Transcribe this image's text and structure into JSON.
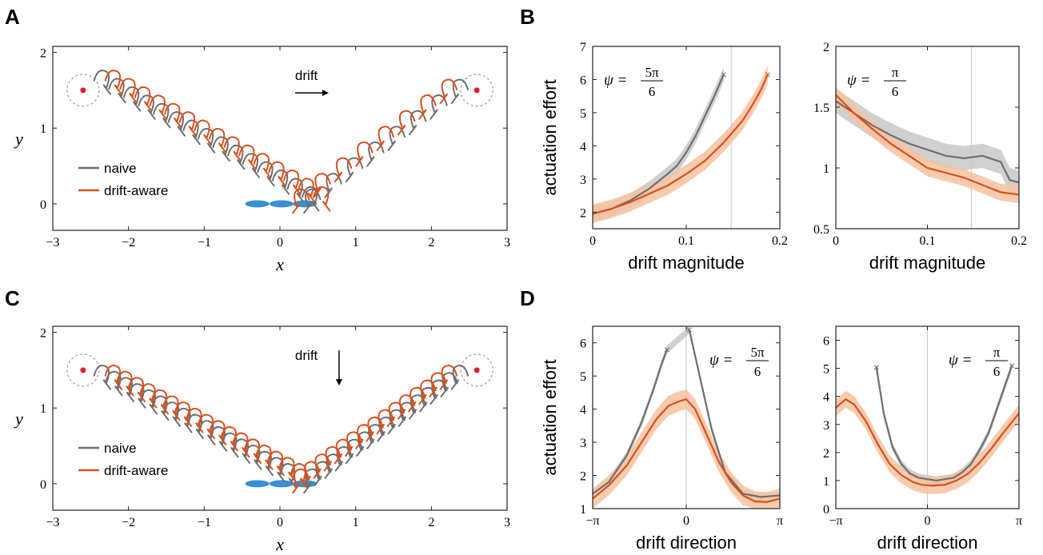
{
  "panels": {
    "A": "A",
    "B": "B",
    "C": "C",
    "D": "D"
  },
  "colors": {
    "naive": "#6f6f6f",
    "aware": "#d9501e",
    "naive_band": "#c8c8c8",
    "aware_band": "#f6c29f",
    "target": "#e8192c",
    "swimmer": "#3a8fd0"
  },
  "chart_data": [
    {
      "id": "A",
      "type": "line",
      "xlabel": "x",
      "ylabel": "y",
      "xlim": [
        -3,
        3
      ],
      "ylim": [
        -0.35,
        2.08
      ],
      "xticks": [
        -3,
        -2,
        -1,
        0,
        1,
        2,
        3
      ],
      "xtick_labels": [
        "−3",
        "−2",
        "−1",
        "0",
        "1",
        "2",
        "3"
      ],
      "yticks": [
        0,
        1,
        2
      ],
      "ytick_labels": [
        "0",
        "1",
        "2"
      ],
      "legend": [
        "naive",
        "drift-aware"
      ],
      "legend_position": "lower-left",
      "annotation": "drift",
      "drift_arrow": "right",
      "targets": [
        [
          -2.6,
          1.5
        ],
        [
          2.6,
          1.5
        ]
      ],
      "swimmer_x": [
        -0.3,
        0.02,
        0.33
      ],
      "left_branch": {
        "x0": -2.35,
        "y0": 1.62,
        "x1": 0.4,
        "y1": 0.08,
        "n": 15
      },
      "right_branch": {
        "x0": 0.45,
        "y0": 0.05,
        "x1": 2.4,
        "y1": 1.5,
        "n": 8
      },
      "series": [
        {
          "name": "naive"
        },
        {
          "name": "drift-aware"
        }
      ]
    },
    {
      "id": "C",
      "type": "line",
      "xlabel": "x",
      "ylabel": "y",
      "xlim": [
        -3,
        3
      ],
      "ylim": [
        -0.35,
        2.08
      ],
      "xticks": [
        -3,
        -2,
        -1,
        0,
        1,
        2,
        3
      ],
      "xtick_labels": [
        "−3",
        "−2",
        "−1",
        "0",
        "1",
        "2",
        "3"
      ],
      "yticks": [
        0,
        1,
        2
      ],
      "ytick_labels": [
        "0",
        "1",
        "2"
      ],
      "legend": [
        "naive",
        "drift-aware"
      ],
      "legend_position": "lower-left",
      "annotation": "drift",
      "drift_arrow": "down",
      "targets": [
        [
          -2.6,
          1.5
        ],
        [
          2.6,
          1.5
        ]
      ],
      "swimmer_x": [
        -0.3,
        0.02,
        0.33
      ],
      "left_branch": {
        "x0": -2.35,
        "y0": 1.42,
        "x1": 0.1,
        "y1": 0.12,
        "n": 17
      },
      "right_branch": {
        "x0": 0.45,
        "y0": 0.05,
        "x1": 2.4,
        "y1": 1.42,
        "n": 15
      },
      "series": [
        {
          "name": "naive"
        },
        {
          "name": "drift-aware"
        }
      ]
    },
    {
      "id": "B1",
      "type": "line",
      "xlabel": "drift magnitude",
      "ylabel": "actuation effort",
      "xlim": [
        0,
        0.2
      ],
      "ylim": [
        1.5,
        7
      ],
      "xticks": [
        0,
        0.1,
        0.2
      ],
      "xtick_labels": [
        "0",
        "0.1",
        "0.2"
      ],
      "yticks": [
        2,
        3,
        4,
        5,
        6,
        7
      ],
      "ytick_labels": [
        "2",
        "3",
        "4",
        "5",
        "6",
        "7"
      ],
      "psi_label": "ψ =",
      "psi_num": "5π",
      "psi_den": "6",
      "vline": 0.148,
      "series": [
        {
          "name": "naive",
          "x": [
            0,
            0.02,
            0.04,
            0.06,
            0.08,
            0.09,
            0.1,
            0.11,
            0.12,
            0.13,
            0.14
          ],
          "y": [
            1.95,
            2.1,
            2.35,
            2.7,
            3.15,
            3.4,
            3.8,
            4.3,
            4.9,
            5.5,
            6.15
          ],
          "band": 0.22,
          "end_marker": true
        },
        {
          "name": "drift-aware",
          "x": [
            0,
            0.02,
            0.04,
            0.06,
            0.08,
            0.1,
            0.12,
            0.14,
            0.16,
            0.17,
            0.18,
            0.187
          ],
          "y": [
            1.95,
            2.1,
            2.3,
            2.55,
            2.8,
            3.15,
            3.55,
            4.1,
            4.75,
            5.2,
            5.7,
            6.15
          ],
          "band": 0.28,
          "end_marker": true
        }
      ]
    },
    {
      "id": "B2",
      "type": "line",
      "xlabel": "drift magnitude",
      "ylabel": "",
      "xlim": [
        0,
        0.2
      ],
      "ylim": [
        0.5,
        2
      ],
      "xticks": [
        0,
        0.1,
        0.2
      ],
      "xtick_labels": [
        "0",
        "0.1",
        "0.2"
      ],
      "yticks": [
        0.5,
        1,
        1.5,
        2
      ],
      "ytick_labels": [
        "0.5",
        "1",
        "1.5",
        "2"
      ],
      "psi_label": "ψ =",
      "psi_num": "π",
      "psi_den": "6",
      "vline": 0.148,
      "series": [
        {
          "name": "naive",
          "x": [
            0,
            0.02,
            0.04,
            0.06,
            0.08,
            0.1,
            0.12,
            0.14,
            0.16,
            0.18,
            0.19,
            0.2
          ],
          "y": [
            1.55,
            1.45,
            1.35,
            1.27,
            1.2,
            1.15,
            1.1,
            1.08,
            1.1,
            1.05,
            0.9,
            0.88
          ],
          "band": 0.1,
          "end_marker": false
        },
        {
          "name": "drift-aware",
          "x": [
            0,
            0.02,
            0.04,
            0.06,
            0.08,
            0.1,
            0.12,
            0.14,
            0.16,
            0.18,
            0.2
          ],
          "y": [
            1.6,
            1.45,
            1.32,
            1.2,
            1.1,
            1.0,
            0.96,
            0.92,
            0.86,
            0.8,
            0.78
          ],
          "band": 0.07,
          "end_marker": false
        }
      ]
    },
    {
      "id": "D1",
      "type": "line",
      "xlabel": "drift direction",
      "ylabel": "actuation effort",
      "xlim": [
        -3.1416,
        3.1416
      ],
      "ylim": [
        1,
        6.5
      ],
      "xticks": [
        -3.1416,
        0,
        3.1416
      ],
      "xtick_labels": [
        "−π",
        "0",
        "π"
      ],
      "yticks": [
        1,
        2,
        3,
        4,
        5,
        6
      ],
      "ytick_labels": [
        "1",
        "2",
        "3",
        "4",
        "5",
        "6"
      ],
      "psi_label": "ψ =",
      "psi_num": "5π",
      "psi_den": "6",
      "vline": 0,
      "series": [
        {
          "name": "naive",
          "x": [
            -3.1416,
            -2.6,
            -2.0,
            -1.5,
            -1.1,
            -0.85,
            -0.65,
            0.1,
            0.3,
            0.55,
            0.85,
            1.3,
            1.9,
            2.5,
            3.1416
          ],
          "y": [
            1.45,
            1.8,
            2.6,
            3.6,
            4.6,
            5.3,
            5.8,
            6.4,
            5.6,
            4.6,
            3.4,
            2.1,
            1.45,
            1.35,
            1.4
          ],
          "band": 0.12,
          "end_marker": true,
          "gap": [
            -0.65,
            0.1
          ]
        },
        {
          "name": "drift-aware",
          "x": [
            -3.1416,
            -2.6,
            -2.0,
            -1.5,
            -1.0,
            -0.6,
            -0.2,
            0.0,
            0.3,
            0.7,
            1.1,
            1.5,
            1.9,
            2.3,
            2.7,
            3.1416
          ],
          "y": [
            1.3,
            1.7,
            2.3,
            3.0,
            3.7,
            4.1,
            4.25,
            4.3,
            4.0,
            3.2,
            2.4,
            1.8,
            1.4,
            1.22,
            1.2,
            1.3
          ],
          "band": 0.3,
          "end_marker": false
        }
      ]
    },
    {
      "id": "D2",
      "type": "line",
      "xlabel": "drift direction",
      "ylabel": "",
      "xlim": [
        -3.1416,
        3.1416
      ],
      "ylim": [
        0,
        6.5
      ],
      "xticks": [
        -3.1416,
        0,
        3.1416
      ],
      "xtick_labels": [
        "−π",
        "0",
        "π"
      ],
      "yticks": [
        0,
        1,
        2,
        3,
        4,
        5,
        6
      ],
      "ytick_labels": [
        "0",
        "1",
        "2",
        "3",
        "4",
        "5",
        "6"
      ],
      "psi_label": "ψ =",
      "psi_num": "π",
      "psi_den": "6",
      "vline": 0,
      "series": [
        {
          "name": "naive",
          "x": [
            -1.75,
            -1.5,
            -1.2,
            -0.9,
            -0.6,
            -0.3,
            0,
            0.3,
            0.6,
            0.9,
            1.2,
            1.5,
            1.8,
            2.1,
            2.4,
            2.7,
            2.9
          ],
          "y": [
            5.05,
            3.4,
            2.2,
            1.6,
            1.25,
            1.1,
            1.05,
            1.0,
            1.05,
            1.1,
            1.3,
            1.6,
            2.1,
            2.7,
            3.6,
            4.5,
            5.1
          ],
          "band": 0.15,
          "end_marker": true
        },
        {
          "name": "drift-aware",
          "x": [
            -3.1416,
            -2.8,
            -2.5,
            -2.1,
            -1.7,
            -1.3,
            -0.9,
            -0.5,
            -0.2,
            0.2,
            0.6,
            1.0,
            1.4,
            1.8,
            2.2,
            2.6,
            3.1416
          ],
          "y": [
            3.6,
            3.9,
            3.7,
            3.1,
            2.3,
            1.6,
            1.2,
            0.95,
            0.85,
            0.82,
            0.85,
            1.0,
            1.25,
            1.65,
            2.15,
            2.7,
            3.4
          ],
          "band": 0.3,
          "end_marker": false
        }
      ]
    }
  ]
}
